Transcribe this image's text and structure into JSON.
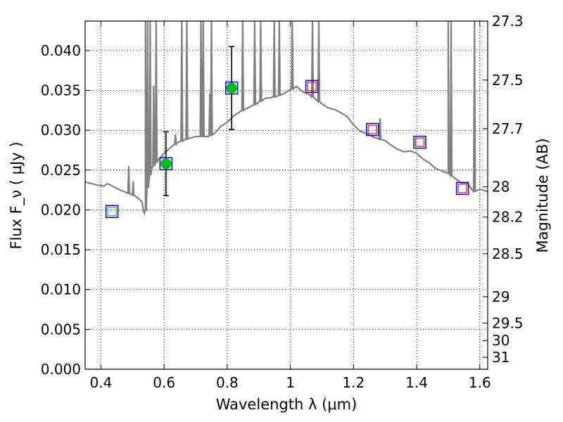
{
  "chart_data": {
    "type": "scatter",
    "xlabel": "Wavelength  λ (μm)",
    "ylabel": "Flux  F_ν  ( μJy )",
    "ylabel_right": "Magnitude (AB)",
    "xlim": [
      0.35,
      1.625
    ],
    "ylim": [
      0.0,
      0.0437
    ],
    "grid": true,
    "x_ticks": [
      0.4,
      0.6,
      0.8,
      1.0,
      1.2,
      1.4,
      1.6
    ],
    "x_tick_labels": [
      "0.4",
      "0.6",
      "0.8",
      "1",
      "1.2",
      "1.4",
      "1.6"
    ],
    "y_ticks": [
      0.0,
      0.005,
      0.01,
      0.015,
      0.02,
      0.025,
      0.03,
      0.035,
      0.04
    ],
    "y_tick_labels": [
      "0.000",
      "0.005",
      "0.010",
      "0.015",
      "0.020",
      "0.025",
      "0.030",
      "0.035",
      "0.040"
    ],
    "right_ticks": [
      {
        "label": "27.3",
        "flux": 0.0437
      },
      {
        "label": "27.5",
        "flux": 0.0363
      },
      {
        "label": "27.7",
        "flux": 0.0302
      },
      {
        "label": "28",
        "flux": 0.0229
      },
      {
        "label": "28.2",
        "flux": 0.0191
      },
      {
        "label": "28.5",
        "flux": 0.0145
      },
      {
        "label": "29",
        "flux": 0.0091
      },
      {
        "label": "29.5",
        "flux": 0.0058
      },
      {
        "label": "30",
        "flux": 0.0036
      },
      {
        "label": "31",
        "flux": 0.0015
      }
    ],
    "sed_model": {
      "color": "#808080",
      "x": [
        0.35,
        0.37,
        0.39,
        0.41,
        0.42,
        0.43,
        0.445,
        0.46,
        0.48,
        0.5,
        0.52,
        0.53,
        0.535,
        0.538,
        0.541,
        0.545,
        0.55,
        0.56,
        0.58,
        0.6,
        0.62,
        0.64,
        0.66,
        0.68,
        0.7,
        0.72,
        0.74,
        0.76,
        0.78,
        0.8,
        0.82,
        0.84,
        0.86,
        0.88,
        0.9,
        0.92,
        0.94,
        0.96,
        0.98,
        1.0,
        1.02,
        1.04,
        1.06,
        1.08,
        1.1,
        1.12,
        1.14,
        1.16,
        1.18,
        1.2,
        1.22,
        1.24,
        1.26,
        1.28,
        1.3,
        1.32,
        1.34,
        1.36,
        1.38,
        1.4,
        1.42,
        1.44,
        1.46,
        1.48,
        1.5,
        1.52,
        1.54,
        1.56,
        1.58,
        1.6,
        1.625
      ],
      "y": [
        0.0235,
        0.0233,
        0.0231,
        0.023,
        0.0233,
        0.0231,
        0.0228,
        0.0225,
        0.0222,
        0.0219,
        0.0214,
        0.021,
        0.0198,
        0.0196,
        0.0199,
        0.0221,
        0.0232,
        0.0251,
        0.0262,
        0.0271,
        0.0278,
        0.0284,
        0.0287,
        0.029,
        0.0292,
        0.0292,
        0.0292,
        0.0296,
        0.0305,
        0.031,
        0.0318,
        0.0323,
        0.0327,
        0.0331,
        0.0335,
        0.034,
        0.0341,
        0.0343,
        0.0346,
        0.0351,
        0.0355,
        0.0348,
        0.0345,
        0.0339,
        0.0333,
        0.0328,
        0.0326,
        0.0322,
        0.0317,
        0.0307,
        0.0299,
        0.0296,
        0.0292,
        0.0289,
        0.0287,
        0.0281,
        0.0276,
        0.0273,
        0.0274,
        0.0271,
        0.0264,
        0.0259,
        0.0252,
        0.0249,
        0.0246,
        0.024,
        0.0234,
        0.0234,
        0.0223,
        0.0226,
        0.0223
      ]
    },
    "sed_emission_lines": [
      {
        "x": 0.488,
        "peak": 0.0255
      },
      {
        "x": 0.502,
        "peak": 0.0236
      },
      {
        "x": 0.541,
        "peak": 0.0437
      },
      {
        "x": 0.548,
        "peak": 0.0437
      },
      {
        "x": 0.556,
        "peak": 0.0437
      },
      {
        "x": 0.567,
        "peak": 0.0356
      },
      {
        "x": 0.575,
        "peak": 0.0437
      },
      {
        "x": 0.636,
        "peak": 0.0295
      },
      {
        "x": 0.656,
        "peak": 0.0437
      },
      {
        "x": 0.672,
        "peak": 0.0437
      },
      {
        "x": 0.717,
        "peak": 0.0437
      },
      {
        "x": 0.724,
        "peak": 0.0437
      },
      {
        "x": 0.745,
        "peak": 0.0346
      },
      {
        "x": 0.75,
        "peak": 0.0437
      },
      {
        "x": 0.849,
        "peak": 0.0437
      },
      {
        "x": 0.887,
        "peak": 0.0437
      },
      {
        "x": 0.906,
        "peak": 0.0437
      },
      {
        "x": 0.949,
        "peak": 0.0437
      },
      {
        "x": 0.965,
        "peak": 0.0437
      },
      {
        "x": 1.006,
        "peak": 0.0437
      },
      {
        "x": 1.07,
        "peak": 0.0437
      },
      {
        "x": 1.09,
        "peak": 0.0437
      },
      {
        "x": 1.284,
        "peak": 0.0315
      },
      {
        "x": 1.5,
        "peak": 0.0437
      },
      {
        "x": 1.509,
        "peak": 0.0437
      },
      {
        "x": 1.583,
        "peak": 0.0437
      }
    ],
    "observed_points": {
      "color": "#00bf00",
      "x": [
        0.606,
        0.814
      ],
      "y": [
        0.0258,
        0.0353
      ],
      "yerr": [
        0.004,
        0.0052
      ]
    },
    "model_photometry_boxes": {
      "color": "#0000ff",
      "x": [
        0.435,
        0.606,
        0.814,
        1.068,
        1.26,
        1.41,
        1.545
      ],
      "y": [
        0.0198,
        0.0258,
        0.0353,
        0.0355,
        0.0301,
        0.0285,
        0.0227
      ]
    },
    "upper_limit_boxes": {
      "color": "#ff0000",
      "x": [
        1.068,
        1.26,
        1.41,
        1.545
      ],
      "y": [
        0.0355,
        0.0301,
        0.0285,
        0.0227
      ]
    },
    "faint_green_box": {
      "color": "#00bf00",
      "x": 0.435,
      "y": 0.0198
    }
  }
}
